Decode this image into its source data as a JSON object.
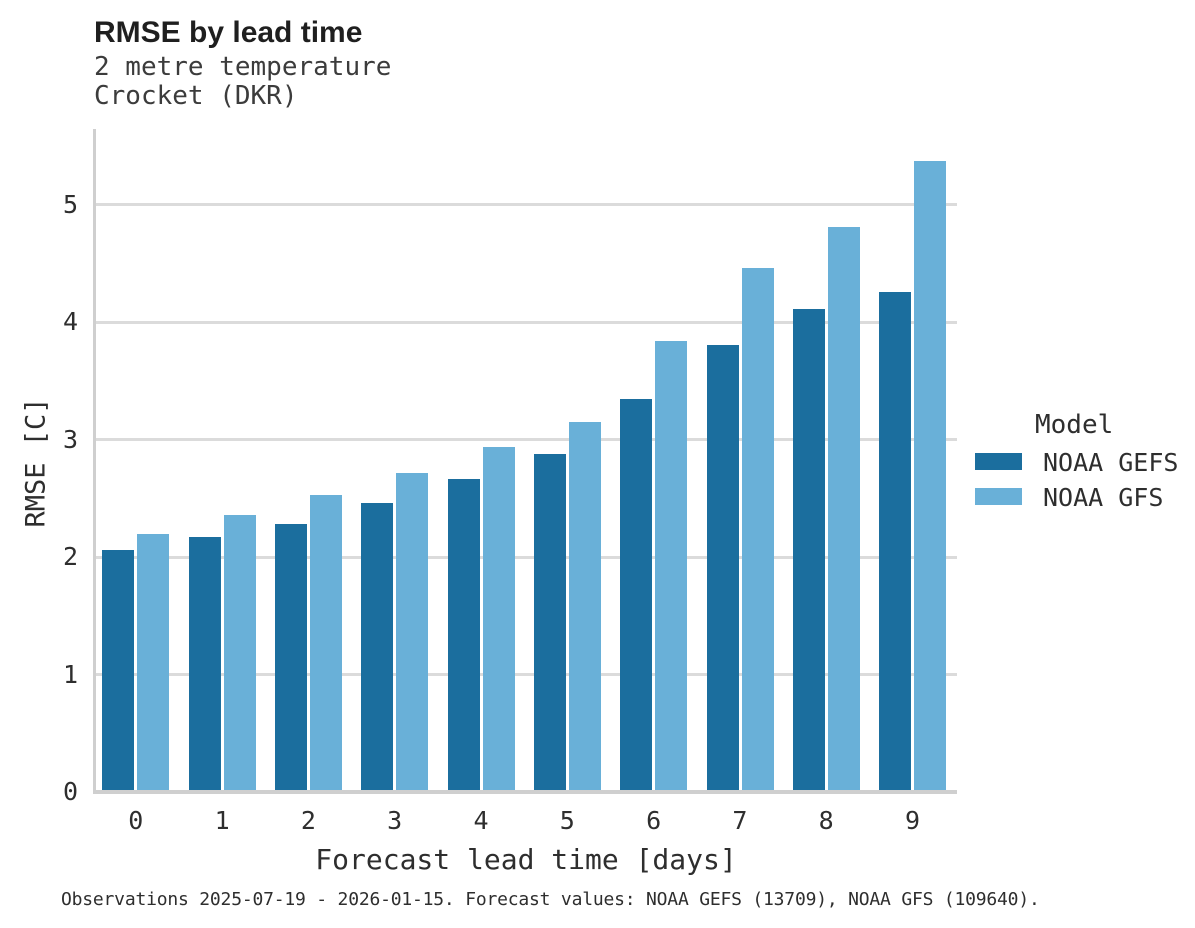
{
  "header": {
    "title": "RMSE by lead time",
    "subtitle_line1": "2 metre temperature",
    "subtitle_line2": "Crocket (DKR)"
  },
  "chart_data": {
    "type": "bar",
    "title": "RMSE by lead time",
    "subtitle": [
      "2 metre temperature",
      "Crocket (DKR)"
    ],
    "xlabel": "Forecast lead time [days]",
    "ylabel": "RMSE [C]",
    "categories": [
      "0",
      "1",
      "2",
      "3",
      "4",
      "5",
      "6",
      "7",
      "8",
      "9"
    ],
    "series": [
      {
        "name": "NOAA GEFS",
        "color": "#1b6e9e",
        "values": [
          2.04,
          2.15,
          2.26,
          2.44,
          2.65,
          2.86,
          3.33,
          3.79,
          4.09,
          4.24
        ]
      },
      {
        "name": "NOAA GFS",
        "color": "#69b0d8",
        "values": [
          2.18,
          2.34,
          2.51,
          2.7,
          2.92,
          3.13,
          3.82,
          4.44,
          4.79,
          5.35
        ]
      }
    ],
    "ylim": [
      0,
      5.63
    ],
    "yticks": [
      0,
      1,
      2,
      3,
      4,
      5
    ],
    "grid": "horizontal",
    "legend_title": "Model",
    "legend_position": "right"
  },
  "legend": {
    "title": "Model",
    "items": [
      {
        "label": "NOAA GEFS",
        "color": "#1b6e9e"
      },
      {
        "label": "NOAA GFS",
        "color": "#69b0d8"
      }
    ]
  },
  "caption": "Observations 2025-07-19 - 2026-01-15. Forecast values: NOAA GEFS (13709), NOAA GFS (109640)."
}
